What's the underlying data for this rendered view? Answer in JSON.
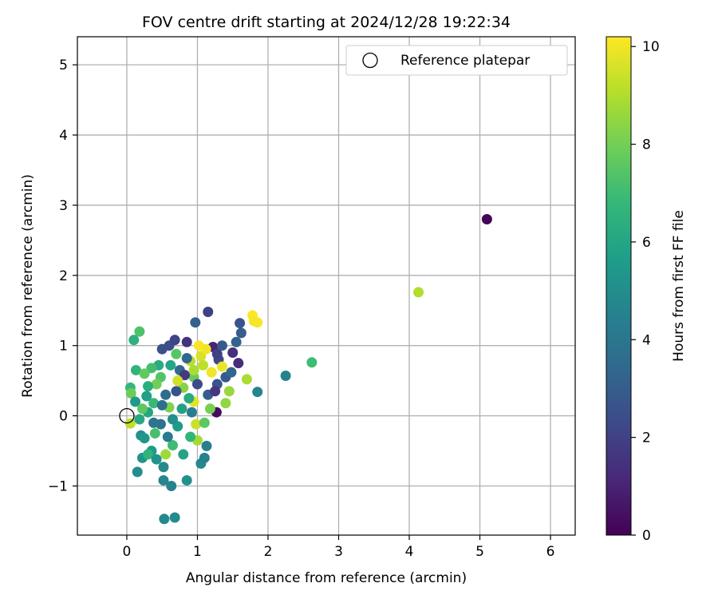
{
  "chart_data": {
    "type": "scatter",
    "title": "FOV centre drift starting at 2024/12/28 19:22:34",
    "xlabel": "Angular distance from reference (arcmin)",
    "ylabel": "Rotation from reference (arcmin)",
    "xlim": [
      -0.7,
      6.35
    ],
    "ylim": [
      -1.7,
      5.4
    ],
    "xticks": [
      0,
      1,
      2,
      3,
      4,
      5,
      6
    ],
    "xtick_labels": [
      "0",
      "1",
      "2",
      "3",
      "4",
      "5",
      "6"
    ],
    "yticks": [
      -1,
      0,
      1,
      2,
      3,
      4,
      5
    ],
    "ytick_labels": [
      "−1",
      "0",
      "1",
      "2",
      "3",
      "4",
      "5"
    ],
    "grid": true,
    "legend": {
      "placement": "upper right",
      "entries": [
        "Reference platepar"
      ]
    },
    "reference_point": {
      "x": 0,
      "y": 0,
      "label": "Reference platepar",
      "marker": "open-circle"
    },
    "colorbar": {
      "label": "Hours from first FF file",
      "range": [
        0,
        10.2
      ],
      "ticks": [
        0,
        2,
        4,
        6,
        8,
        10
      ],
      "tick_labels": [
        "0",
        "2",
        "4",
        "6",
        "8",
        "10"
      ],
      "colormap": "viridis",
      "stops": [
        "#440154",
        "#482878",
        "#3e4989",
        "#31688e",
        "#26828e",
        "#1f9e89",
        "#35b779",
        "#6ece58",
        "#b5de2b",
        "#fde725"
      ]
    },
    "points": [
      {
        "x": 5.1,
        "y": 2.8,
        "c": 0.1
      },
      {
        "x": 4.13,
        "y": 1.76,
        "c": 9.0
      },
      {
        "x": 2.62,
        "y": 0.76,
        "c": 7.0
      },
      {
        "x": 2.25,
        "y": 0.57,
        "c": 4.5
      },
      {
        "x": 1.85,
        "y": 0.34,
        "c": 4.6
      },
      {
        "x": 1.78,
        "y": 1.43,
        "c": 10.2
      },
      {
        "x": 1.8,
        "y": 1.35,
        "c": 10.1
      },
      {
        "x": 1.85,
        "y": 1.33,
        "c": 10.1
      },
      {
        "x": 1.7,
        "y": 0.52,
        "c": 8.9
      },
      {
        "x": 1.6,
        "y": 1.32,
        "c": 2.7
      },
      {
        "x": 1.62,
        "y": 1.18,
        "c": 3.0
      },
      {
        "x": 1.55,
        "y": 1.05,
        "c": 3.2
      },
      {
        "x": 1.58,
        "y": 0.75,
        "c": 1.3
      },
      {
        "x": 1.15,
        "y": 1.48,
        "c": 2.0
      },
      {
        "x": 0.97,
        "y": 1.33,
        "c": 3.1
      },
      {
        "x": 1.27,
        "y": 0.05,
        "c": 0.3
      },
      {
        "x": 0.18,
        "y": 1.2,
        "c": 7.3
      },
      {
        "x": 0.1,
        "y": 1.08,
        "c": 6.5
      },
      {
        "x": 0.05,
        "y": 0.4,
        "c": 6.8
      },
      {
        "x": 0.06,
        "y": 0.32,
        "c": 7.9
      },
      {
        "x": 0.13,
        "y": 0.65,
        "c": 6.6
      },
      {
        "x": 0.05,
        "y": -0.11,
        "c": 9.2
      },
      {
        "x": 0.15,
        "y": -0.8,
        "c": 5.0
      },
      {
        "x": 0.2,
        "y": -0.28,
        "c": 5.2
      },
      {
        "x": 0.22,
        "y": -0.6,
        "c": 5.3
      },
      {
        "x": 0.3,
        "y": 0.05,
        "c": 6.0
      },
      {
        "x": 0.35,
        "y": -0.5,
        "c": 5.5
      },
      {
        "x": 0.38,
        "y": 0.18,
        "c": 6.9
      },
      {
        "x": 0.4,
        "y": -0.25,
        "c": 7.2
      },
      {
        "x": 0.45,
        "y": 0.72,
        "c": 6.3
      },
      {
        "x": 0.5,
        "y": 0.95,
        "c": 2.5
      },
      {
        "x": 0.52,
        "y": -0.73,
        "c": 4.9
      },
      {
        "x": 0.52,
        "y": -0.92,
        "c": 4.7
      },
      {
        "x": 0.53,
        "y": -1.47,
        "c": 4.8
      },
      {
        "x": 0.68,
        "y": -1.45,
        "c": 4.9
      },
      {
        "x": 0.63,
        "y": -1.0,
        "c": 4.6
      },
      {
        "x": 0.85,
        "y": -0.92,
        "c": 5.1
      },
      {
        "x": 0.6,
        "y": 1.0,
        "c": 2.4
      },
      {
        "x": 0.68,
        "y": 1.08,
        "c": 2.1
      },
      {
        "x": 0.7,
        "y": 0.88,
        "c": 7.5
      },
      {
        "x": 0.75,
        "y": 0.65,
        "c": 3.5
      },
      {
        "x": 0.8,
        "y": 0.4,
        "c": 8.3
      },
      {
        "x": 0.85,
        "y": 1.05,
        "c": 1.5
      },
      {
        "x": 0.9,
        "y": 0.78,
        "c": 9.1
      },
      {
        "x": 0.95,
        "y": 0.2,
        "c": 9.8
      },
      {
        "x": 0.98,
        "y": -0.12,
        "c": 9.4
      },
      {
        "x": 1.0,
        "y": -0.35,
        "c": 8.8
      },
      {
        "x": 1.05,
        "y": -0.68,
        "c": 4.8
      },
      {
        "x": 1.1,
        "y": -0.6,
        "c": 4.5
      },
      {
        "x": 1.13,
        "y": -0.43,
        "c": 4.4
      },
      {
        "x": 1.1,
        "y": -0.1,
        "c": 7.6
      },
      {
        "x": 1.15,
        "y": 0.3,
        "c": 3.0
      },
      {
        "x": 1.2,
        "y": 0.62,
        "c": 10.0
      },
      {
        "x": 1.22,
        "y": 0.98,
        "c": 1.0
      },
      {
        "x": 1.28,
        "y": 0.45,
        "c": 2.7
      },
      {
        "x": 1.3,
        "y": 0.8,
        "c": 2.2
      },
      {
        "x": 1.35,
        "y": 1.0,
        "c": 2.8
      },
      {
        "x": 1.4,
        "y": 0.55,
        "c": 2.9
      },
      {
        "x": 1.4,
        "y": 0.18,
        "c": 8.5
      },
      {
        "x": 1.45,
        "y": 0.35,
        "c": 8.6
      },
      {
        "x": 1.48,
        "y": 0.62,
        "c": 3.3
      },
      {
        "x": 1.05,
        "y": 0.85,
        "c": 9.6
      },
      {
        "x": 1.12,
        "y": 0.95,
        "c": 10.0
      },
      {
        "x": 0.95,
        "y": 0.55,
        "c": 7.8
      },
      {
        "x": 0.88,
        "y": 0.25,
        "c": 6.2
      },
      {
        "x": 0.78,
        "y": 0.1,
        "c": 5.8
      },
      {
        "x": 0.72,
        "y": -0.15,
        "c": 5.6
      },
      {
        "x": 0.65,
        "y": -0.42,
        "c": 7.0
      },
      {
        "x": 0.58,
        "y": -0.3,
        "c": 4.2
      },
      {
        "x": 0.55,
        "y": 0.3,
        "c": 3.6
      },
      {
        "x": 0.48,
        "y": 0.55,
        "c": 7.4
      },
      {
        "x": 0.42,
        "y": 0.45,
        "c": 8.0
      },
      {
        "x": 0.35,
        "y": 0.68,
        "c": 7.1
      },
      {
        "x": 0.3,
        "y": 0.42,
        "c": 6.4
      },
      {
        "x": 0.25,
        "y": 0.6,
        "c": 7.7
      },
      {
        "x": 0.28,
        "y": 0.28,
        "c": 5.7
      },
      {
        "x": 0.18,
        "y": -0.05,
        "c": 6.1
      },
      {
        "x": 0.25,
        "y": -0.32,
        "c": 5.4
      },
      {
        "x": 0.3,
        "y": -0.55,
        "c": 6.6
      },
      {
        "x": 0.42,
        "y": -0.62,
        "c": 5.2
      },
      {
        "x": 0.48,
        "y": -0.12,
        "c": 3.9
      },
      {
        "x": 0.6,
        "y": 0.12,
        "c": 8.2
      },
      {
        "x": 0.7,
        "y": 0.35,
        "c": 2.6
      },
      {
        "x": 0.82,
        "y": 0.58,
        "c": 1.8
      },
      {
        "x": 0.92,
        "y": 0.05,
        "c": 4.3
      },
      {
        "x": 1.0,
        "y": 0.45,
        "c": 2.3
      },
      {
        "x": 1.08,
        "y": 0.72,
        "c": 9.2
      },
      {
        "x": 1.18,
        "y": 0.1,
        "c": 8.1
      },
      {
        "x": 1.25,
        "y": 0.35,
        "c": 1.6
      },
      {
        "x": 1.35,
        "y": 0.7,
        "c": 9.9
      },
      {
        "x": 0.8,
        "y": -0.55,
        "c": 5.9
      },
      {
        "x": 0.9,
        "y": -0.3,
        "c": 6.7
      },
      {
        "x": 0.55,
        "y": -0.55,
        "c": 8.7
      },
      {
        "x": 0.38,
        "y": -0.1,
        "c": 4.0
      },
      {
        "x": 0.12,
        "y": 0.2,
        "c": 5.5
      },
      {
        "x": 0.22,
        "y": 0.1,
        "c": 7.6
      },
      {
        "x": 0.62,
        "y": 0.72,
        "c": 6.0
      },
      {
        "x": 0.72,
        "y": 0.5,
        "c": 9.5
      },
      {
        "x": 1.02,
        "y": 1.0,
        "c": 10.1
      },
      {
        "x": 1.28,
        "y": 0.88,
        "c": 2.0
      },
      {
        "x": 1.5,
        "y": 0.9,
        "c": 1.4
      },
      {
        "x": 0.5,
        "y": 0.15,
        "c": 3.7
      },
      {
        "x": 0.65,
        "y": -0.05,
        "c": 5.0
      },
      {
        "x": 0.85,
        "y": 0.82,
        "c": 3.4
      },
      {
        "x": 0.95,
        "y": 0.65,
        "c": 8.9
      }
    ]
  }
}
